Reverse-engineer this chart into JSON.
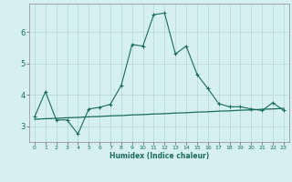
{
  "title": "",
  "xlabel": "Humidex (Indice chaleur)",
  "x_values": [
    0,
    1,
    2,
    3,
    4,
    5,
    6,
    7,
    8,
    9,
    10,
    11,
    12,
    13,
    14,
    15,
    16,
    17,
    18,
    19,
    20,
    21,
    22,
    23
  ],
  "y_line1": [
    3.3,
    4.1,
    3.2,
    3.2,
    2.75,
    3.55,
    3.6,
    3.7,
    4.3,
    5.6,
    5.55,
    6.55,
    6.6,
    5.3,
    5.55,
    4.65,
    4.2,
    3.72,
    3.62,
    3.62,
    3.55,
    3.5,
    3.75,
    3.5
  ],
  "y_line2": [
    3.22,
    3.24,
    3.25,
    3.27,
    3.28,
    3.3,
    3.31,
    3.33,
    3.34,
    3.36,
    3.37,
    3.39,
    3.4,
    3.42,
    3.43,
    3.45,
    3.46,
    3.48,
    3.49,
    3.51,
    3.52,
    3.54,
    3.55,
    3.57
  ],
  "line_color": "#1a6b5a",
  "bg_color": "#d6f0f0",
  "grid_color": "#b0d8d8",
  "ylim": [
    2.5,
    6.9
  ],
  "yticks": [
    3,
    4,
    5,
    6
  ],
  "xlim": [
    -0.5,
    23.5
  ],
  "xtick_labels": [
    "0",
    "1",
    "2",
    "3",
    "4",
    "5",
    "6",
    "7",
    "8",
    "9",
    "10",
    "11",
    "12",
    "13",
    "14",
    "15",
    "16",
    "17",
    "18",
    "19",
    "20",
    "21",
    "22",
    "23"
  ]
}
